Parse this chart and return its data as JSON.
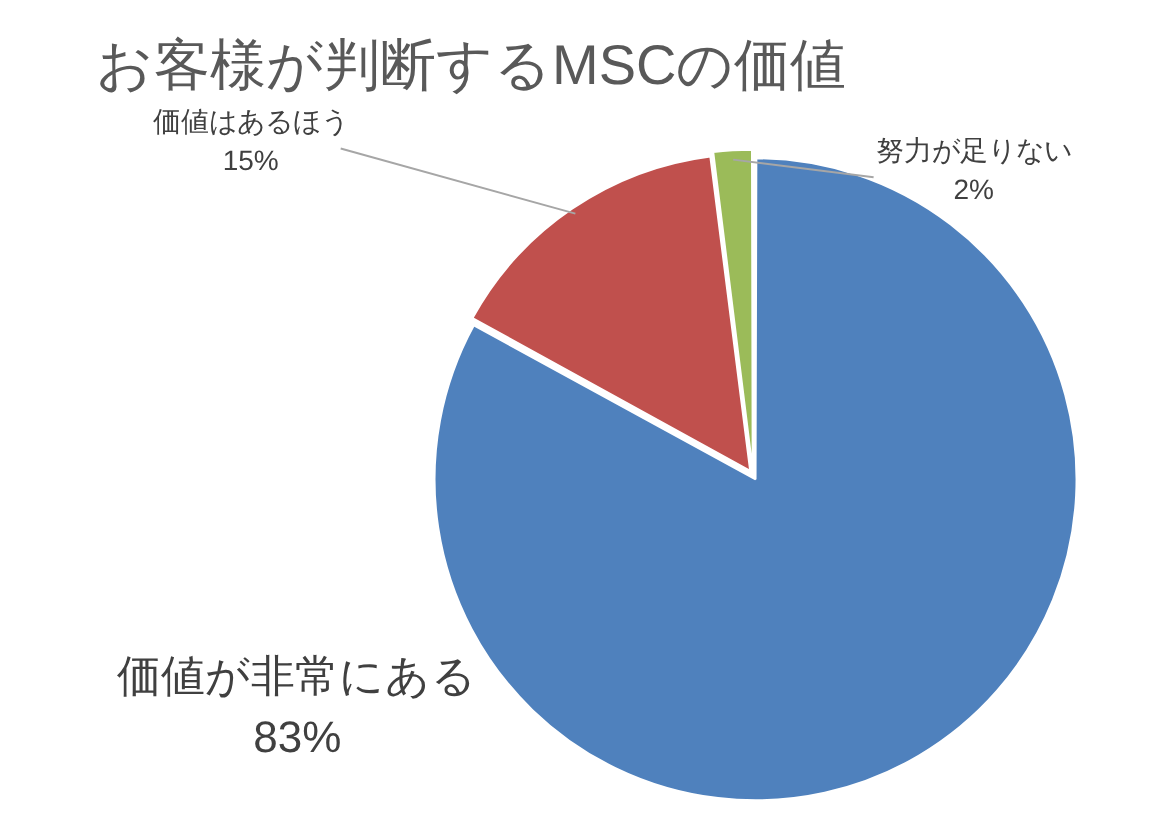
{
  "chart_data": {
    "type": "pie",
    "title": "お客様が判断するMSCの価値",
    "categories": [
      "価値が非常にある",
      "価値はあるほう",
      "努力が足りない"
    ],
    "values": [
      83,
      15,
      2
    ],
    "value_labels": [
      "83%",
      "15%",
      "2%"
    ],
    "colors": [
      "#4f81bd",
      "#c0504d",
      "#9bbb59"
    ]
  }
}
